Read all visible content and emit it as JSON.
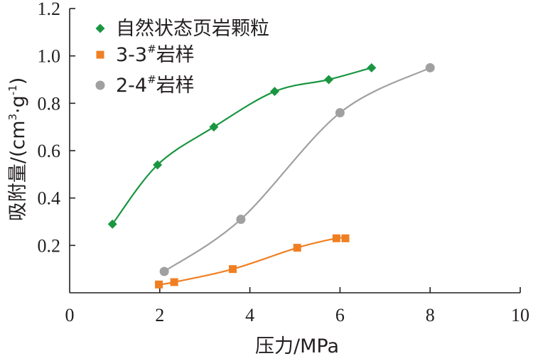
{
  "chart_data": {
    "type": "line",
    "xlabel": "压力/MPa",
    "ylabel": {
      "prefix": "吸附量/(cm",
      "sup1": "3",
      "mid": "·g",
      "sup2": "-1",
      "suffix": ")"
    },
    "xlim": [
      0,
      10
    ],
    "ylim": [
      0,
      1.2
    ],
    "x_ticks": [
      "0",
      "2",
      "4",
      "6",
      "8",
      "10"
    ],
    "y_ticks": [
      "0.2",
      "0.4",
      "0.6",
      "0.8",
      "1.0",
      "1.2"
    ],
    "grid": false,
    "legend_position": "top-left",
    "series": [
      {
        "name": "自然状态页岩颗粒",
        "legend_main": "自然状态页岩颗粒",
        "legend_sup": "",
        "legend_suffix": "",
        "color": "#1a9641",
        "marker": "diamond",
        "x": [
          0.95,
          1.95,
          3.2,
          4.55,
          5.75,
          6.7
        ],
        "y": [
          0.29,
          0.54,
          0.7,
          0.85,
          0.9,
          0.95
        ]
      },
      {
        "name": "3-3#岩样",
        "legend_main": "3-3",
        "legend_sup": "#",
        "legend_suffix": "岩样",
        "color": "#f07f23",
        "marker": "square",
        "x": [
          1.98,
          2.32,
          3.62,
          5.05,
          5.92,
          6.12
        ],
        "y": [
          0.035,
          0.045,
          0.1,
          0.19,
          0.23,
          0.23
        ]
      },
      {
        "name": "2-4#岩样",
        "legend_main": "2-4",
        "legend_sup": "#",
        "legend_suffix": "岩样",
        "color": "#a0a0a0",
        "marker": "circle",
        "x": [
          2.1,
          3.8,
          6.0,
          8.0
        ],
        "y": [
          0.09,
          0.31,
          0.76,
          0.95
        ]
      }
    ]
  }
}
